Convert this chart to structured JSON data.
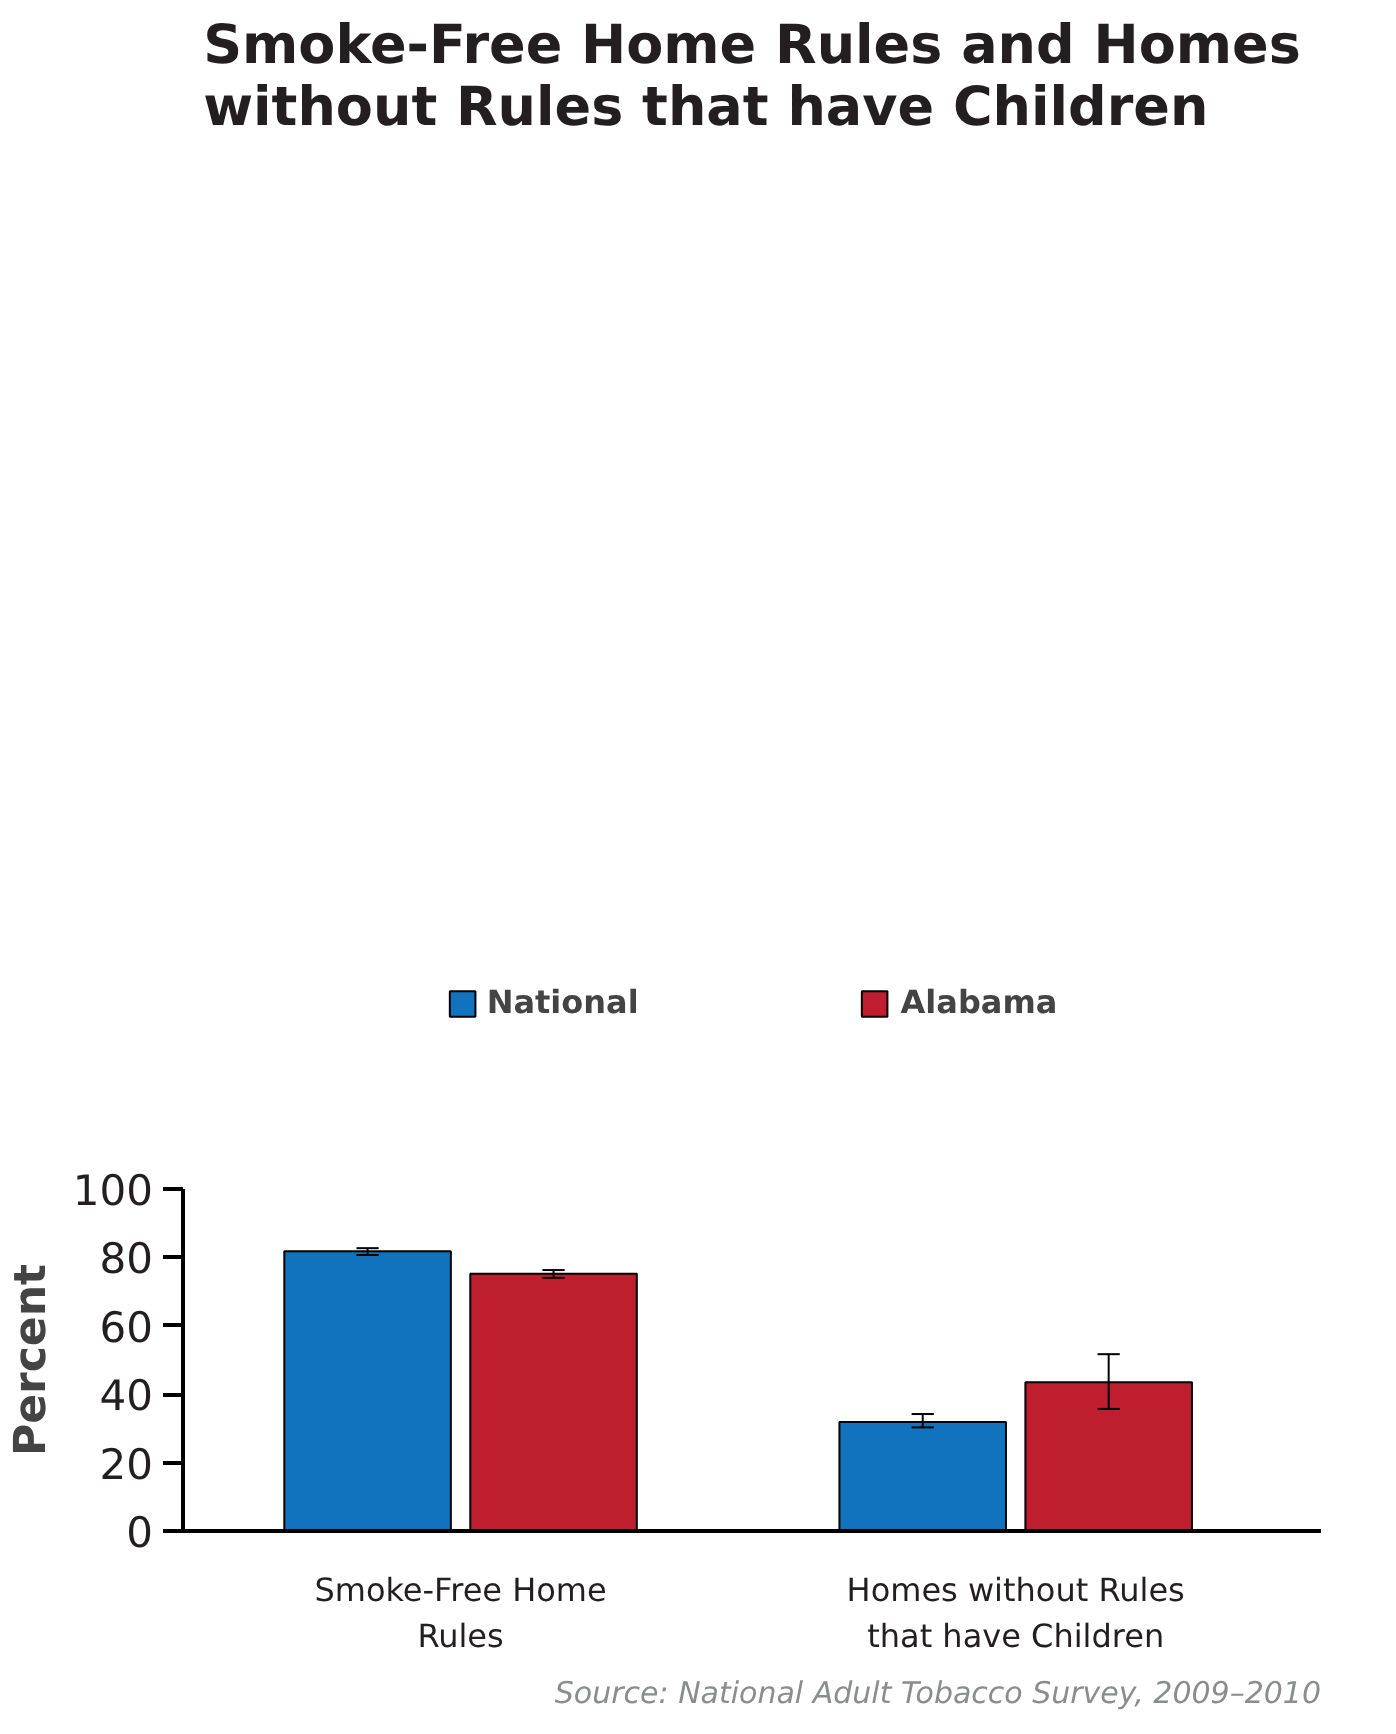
{
  "chart_data": {
    "type": "bar",
    "title": "Smoke-Free Home Rules and Homes without Rules that have Children",
    "ylabel": "Percent",
    "categories": [
      "Smoke-Free Home Rules",
      "Homes without Rules that have Children"
    ],
    "series": [
      {
        "name": "National",
        "color": "#1172bd",
        "values": [
          81.8,
          31.9
        ],
        "errors": [
          [
            80.7,
            82.7
          ],
          [
            30.3,
            34.2
          ]
        ]
      },
      {
        "name": "Alabama",
        "color": "#be1e2d",
        "values": [
          75.2,
          43.5
        ],
        "errors": [
          [
            74.0,
            76.3
          ],
          [
            35.7,
            51.7
          ]
        ]
      }
    ],
    "ylim": [
      0,
      100
    ],
    "yticks": [
      0,
      20,
      40,
      60,
      80,
      100
    ],
    "grid": false,
    "legend": "top",
    "annotations": [
      "Source: National Adult Tobacco Survey, 2009–2010"
    ]
  }
}
